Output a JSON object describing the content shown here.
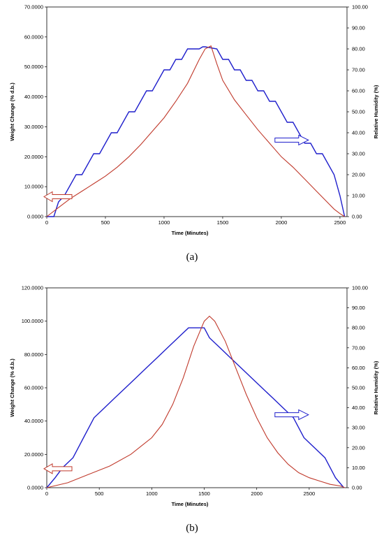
{
  "chart_data": [
    {
      "type": "line",
      "caption": "(a)",
      "xlabel": "Time (Minutes)",
      "ylabel": "Weight Change (% d.b.)",
      "y2label": "Relative Humidity (%)",
      "xlim": [
        0,
        2560
      ],
      "xticks": [
        0,
        500,
        1000,
        1500,
        2000,
        2500
      ],
      "ylim": [
        0,
        70
      ],
      "yticks": [
        "0.0000",
        "10.0000",
        "20.0000",
        "30.0000",
        "40.0000",
        "50.0000",
        "60.0000",
        "70.0000"
      ],
      "y2lim": [
        0,
        100
      ],
      "y2ticks": [
        "0.00",
        "10.00",
        "20.00",
        "30.00",
        "40.00",
        "50.00",
        "60.00",
        "70.00",
        "80.00",
        "90.00",
        "100.00"
      ],
      "colors": {
        "weight": "#c0392b",
        "rh": "#1f1fcc"
      },
      "weight_series": {
        "x": [
          0,
          100,
          200,
          300,
          400,
          500,
          600,
          700,
          800,
          900,
          1000,
          1100,
          1200,
          1300,
          1350,
          1400,
          1450,
          1500,
          1600,
          1700,
          1800,
          1900,
          2000,
          2100,
          2200,
          2300,
          2400,
          2450,
          2500,
          2540
        ],
        "y": [
          0,
          3,
          6,
          8.5,
          11,
          13.5,
          16.5,
          20,
          24,
          28.5,
          33,
          38.5,
          44.5,
          52.5,
          56,
          57,
          51,
          45.5,
          39,
          34,
          29,
          24.5,
          20,
          16.5,
          12.5,
          8.5,
          4.5,
          2.5,
          1,
          0
        ]
      },
      "rh_series": {
        "x": [
          0,
          60,
          100,
          150,
          200,
          250,
          300,
          350,
          400,
          450,
          500,
          550,
          600,
          650,
          700,
          750,
          800,
          850,
          900,
          950,
          1000,
          1050,
          1100,
          1150,
          1200,
          1250,
          1300,
          1330,
          1350,
          1450,
          1500,
          1550,
          1600,
          1650,
          1700,
          1750,
          1800,
          1850,
          1900,
          1950,
          2000,
          2050,
          2100,
          2150,
          2200,
          2250,
          2300,
          2350,
          2400,
          2450,
          2500,
          2540
        ],
        "y": [
          0,
          0,
          7,
          10,
          15,
          20,
          20,
          25,
          30,
          30,
          35,
          40,
          40,
          45,
          50,
          50,
          55,
          60,
          60,
          65,
          70,
          70,
          75,
          75,
          80,
          80,
          80,
          81,
          81,
          80,
          75,
          75,
          70,
          70,
          65,
          65,
          60,
          60,
          55,
          55,
          50,
          45,
          45,
          40,
          35,
          35,
          30,
          30,
          25,
          20,
          10,
          0
        ]
      },
      "annotations": [
        {
          "type": "left-arrow",
          "target": "weight"
        },
        {
          "type": "right-arrow",
          "target": "rh"
        }
      ]
    },
    {
      "type": "line",
      "caption": "(b)",
      "xlabel": "Time (Minutes)",
      "ylabel": "Weight Change (% d.b.)",
      "y2label": "Relative Humidity (%)",
      "xlim": [
        0,
        2860
      ],
      "xticks": [
        0,
        500,
        1000,
        1500,
        2000,
        2500
      ],
      "ylim": [
        0,
        120
      ],
      "yticks": [
        "0.0000",
        "20.0000",
        "40.0000",
        "60.0000",
        "80.0000",
        "100.0000",
        "120.0000"
      ],
      "y2lim": [
        0,
        100
      ],
      "y2ticks": [
        "0.00",
        "10.00",
        "20.00",
        "30.00",
        "40.00",
        "50.00",
        "60.00",
        "70.00",
        "80.00",
        "90.00",
        "100.00"
      ],
      "colors": {
        "weight": "#c0392b",
        "rh": "#1f1fcc"
      },
      "weight_series": {
        "x": [
          0,
          200,
          400,
          600,
          800,
          1000,
          1100,
          1200,
          1300,
          1400,
          1500,
          1550,
          1600,
          1700,
          1800,
          1900,
          2000,
          2100,
          2200,
          2300,
          2400,
          2500,
          2600,
          2700,
          2800,
          2840
        ],
        "y": [
          0,
          3,
          8,
          13,
          20,
          30,
          38,
          50,
          66,
          85,
          100,
          103,
          100,
          88,
          72,
          56,
          42,
          30,
          21,
          14,
          9,
          6,
          4,
          2,
          1,
          0
        ]
      },
      "rh_series": {
        "x": [
          0,
          80,
          150,
          250,
          350,
          450,
          550,
          650,
          750,
          850,
          950,
          1050,
          1150,
          1250,
          1350,
          1500,
          1550,
          1650,
          1750,
          1850,
          1950,
          2050,
          2150,
          2250,
          2350,
          2450,
          2550,
          2650,
          2750,
          2830
        ],
        "y": [
          0,
          5,
          10,
          15,
          25,
          35,
          40,
          45,
          50,
          55,
          60,
          65,
          70,
          75,
          80,
          80,
          75,
          70,
          65,
          60,
          55,
          50,
          45,
          40,
          35,
          25,
          20,
          15,
          5,
          0
        ]
      },
      "annotations": [
        {
          "type": "left-arrow",
          "target": "weight"
        },
        {
          "type": "right-arrow",
          "target": "rh"
        }
      ]
    }
  ]
}
